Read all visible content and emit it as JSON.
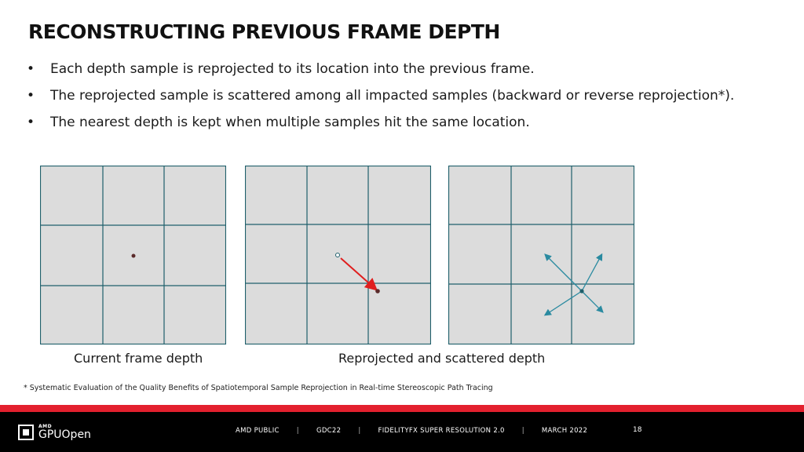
{
  "slide": {
    "title": "RECONSTRUCTING PREVIOUS FRAME DEPTH",
    "bullets": [
      "Each depth sample is reprojected to its location into the previous frame.",
      "The reprojected sample is scattered among all impacted samples (backward or reverse reprojection*).",
      "The nearest depth is kept when multiple samples hit the same location."
    ],
    "bullet_glyph": "•",
    "captions": {
      "current": "Current frame depth",
      "reprojected": "Reprojected and scattered depth"
    },
    "footnote": "* Systematic Evaluation of the Quality Benefits of Spatiotemporal Sample Reprojection in Real-time Stereoscopic Path Tracing"
  },
  "footer": {
    "logo_small": "AMD",
    "logo_main": "GPUOpen",
    "items": [
      "AMD PUBLIC",
      "GDC22",
      "FIDELITYFX SUPER RESOLUTION 2.0",
      "MARCH 2022"
    ],
    "separator": "|",
    "page_number": "18"
  },
  "colors": {
    "grid_fill": "#dcdcdc",
    "grid_line": "#1f5f6b",
    "sample_dot": "#5a2a2a",
    "reprojection_arrow": "#e01e1e",
    "scatter_arrow": "#2a8aa0",
    "accent_bar": "#e3202e",
    "footer_bg": "#000000"
  }
}
